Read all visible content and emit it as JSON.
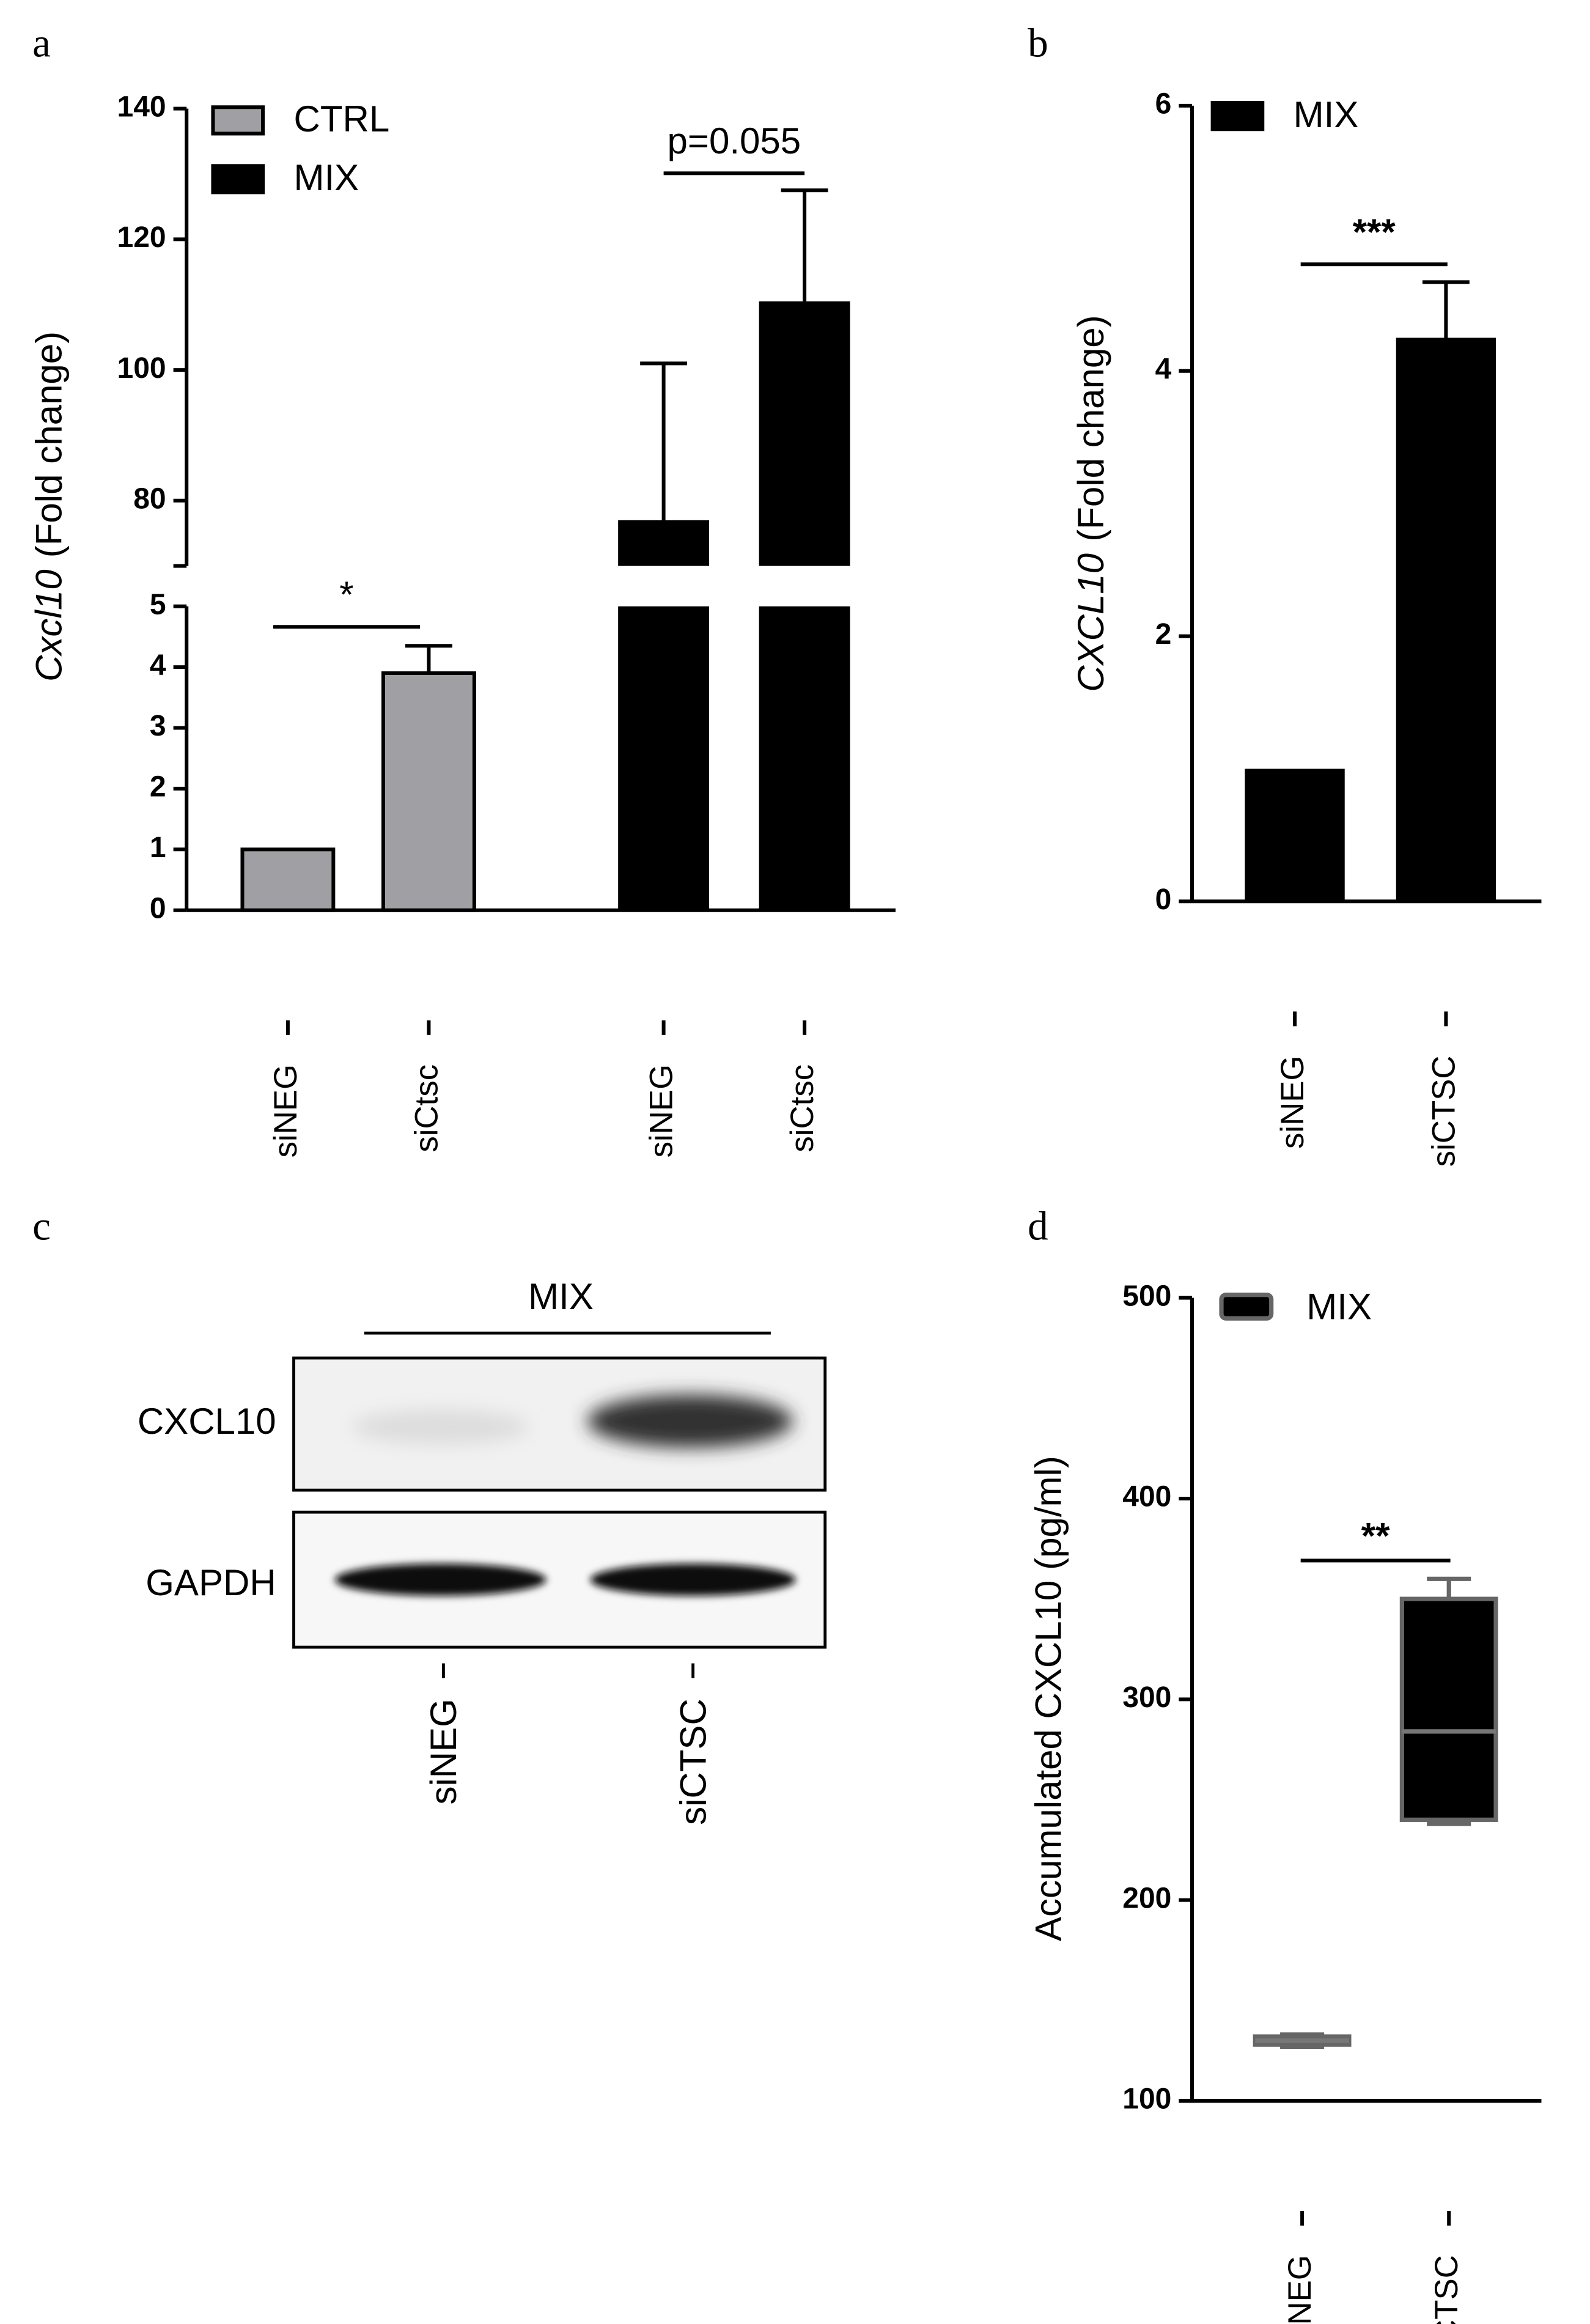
{
  "chart_data": [
    {
      "type": "bar",
      "panel": "a",
      "ylabel": [
        "Cxcl10",
        "(Fold change)"
      ],
      "categories": [
        "siNEG",
        "siCtsc",
        "siNEG",
        "siCtsc"
      ],
      "series": [
        {
          "name": "CTRL",
          "color": "#a0a0a4",
          "values": [
            1,
            3.9,
            null,
            null
          ],
          "errors": [
            null,
            0.45,
            null,
            null
          ]
        },
        {
          "name": "MIX",
          "color": "#000000",
          "values": [
            null,
            null,
            77,
            110.5
          ],
          "errors": [
            null,
            null,
            24,
            17
          ]
        }
      ],
      "ylim": [
        0,
        5
      ],
      "yticks": [
        0,
        1,
        2,
        3,
        4,
        5
      ],
      "break": {
        "ylim": [
          70,
          140
        ],
        "yticks": [
          80,
          100,
          120,
          140
        ]
      },
      "annotations": [
        "*",
        "p=0.055"
      ],
      "legend": "upper left"
    },
    {
      "type": "bar",
      "panel": "b",
      "ylabel": [
        "CXCL10",
        "(Fold change)"
      ],
      "categories": [
        "siNEG",
        "siCTSC"
      ],
      "series": [
        {
          "name": "MIX",
          "color": "#000000",
          "values": [
            1,
            4.25
          ],
          "errors": [
            null,
            0.42
          ]
        }
      ],
      "ylim": [
        0,
        6
      ],
      "yticks": [
        0,
        2,
        4,
        6
      ],
      "annotations": [
        "***"
      ],
      "legend": "upper left"
    },
    {
      "type": "blot",
      "panel": "c",
      "title": "MIX",
      "rows": [
        "CXCL10",
        "GAPDH"
      ],
      "categories": [
        "siNEG",
        "siCTSC"
      ]
    },
    {
      "type": "box",
      "panel": "d",
      "ylabel": "Accumulated CXCL10 (pg/ml)",
      "series_name": "MIX",
      "color": "#000000",
      "categories": [
        "siNEG",
        "siCTSC"
      ],
      "min": [
        127,
        238
      ],
      "q1": [
        128,
        240
      ],
      "median": [
        130,
        284
      ],
      "q3": [
        132,
        350
      ],
      "max": [
        133,
        360
      ],
      "ylim": [
        100,
        500
      ],
      "yticks": [
        100,
        200,
        300,
        400,
        500
      ],
      "annotations": [
        "**"
      ],
      "legend": "upper left"
    }
  ]
}
